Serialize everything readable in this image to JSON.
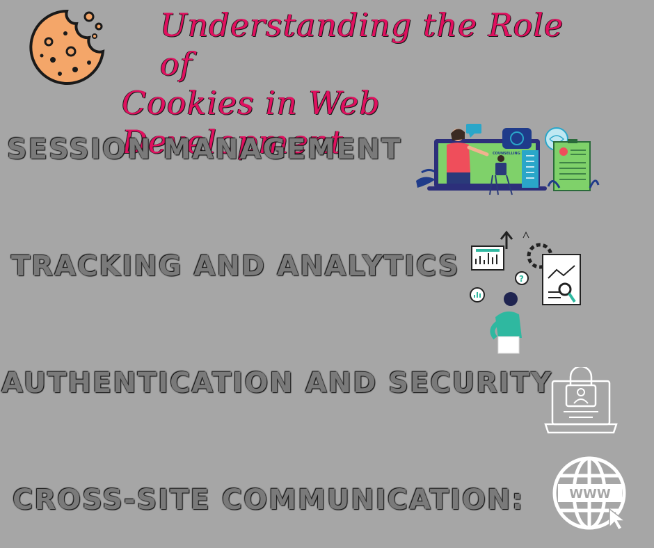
{
  "title": {
    "line1": "Understanding the Role of",
    "line2": "Cookies in Web Development"
  },
  "sections": [
    {
      "label": "SESSION MANAGEMENT",
      "icon": "counselling-session-illustration",
      "caption": "COUNSELLING SESSION"
    },
    {
      "label": "TRACKING AND ANALYTICS",
      "icon": "analytics-person-illustration"
    },
    {
      "label": "AUTHENTICATION AND SECURITY",
      "icon": "laptop-lock-icon"
    },
    {
      "label": "CROSS-SITE COMMUNICATION:",
      "icon": "globe-www-icon",
      "icon_text": "WWW"
    }
  ],
  "colors": {
    "background": "#a6a6a6",
    "title": "#e0105f",
    "heading": "#7a7a7a",
    "cookie": "#f4a669"
  }
}
